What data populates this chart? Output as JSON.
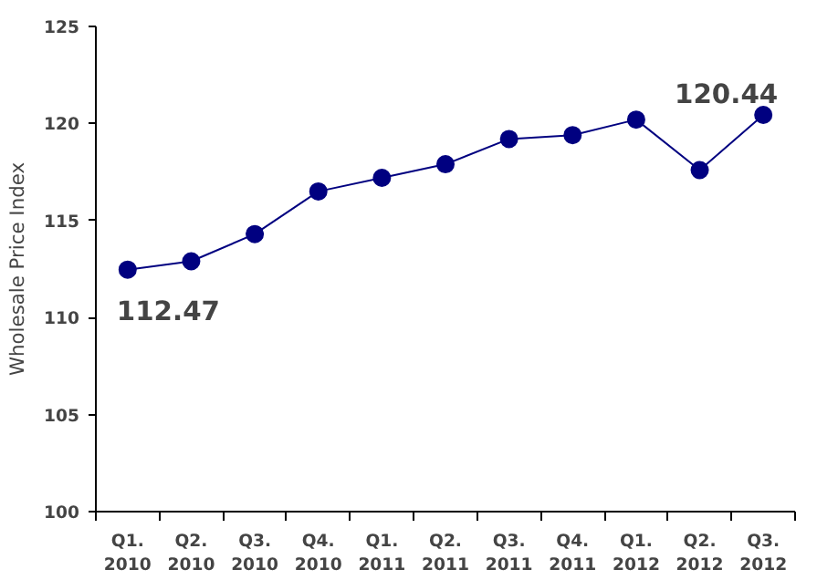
{
  "chart_data": {
    "type": "line",
    "ylabel": "Wholesale Price Index",
    "categories": [
      "Q1.\n2010",
      "Q2.\n2010",
      "Q3.\n2010",
      "Q4.\n2010",
      "Q1.\n2011",
      "Q2.\n2011",
      "Q3.\n2011",
      "Q4.\n2011",
      "Q1.\n2012",
      "Q2.\n2012",
      "Q3.\n2012"
    ],
    "series": [
      {
        "color": "#000080",
        "values": [
          112.47,
          112.9,
          114.3,
          116.5,
          117.2,
          117.9,
          119.2,
          119.4,
          120.2,
          117.6,
          120.44
        ]
      }
    ],
    "ylim": [
      100,
      125
    ],
    "yticks": [
      100,
      105,
      110,
      115,
      120,
      125
    ],
    "grid": false,
    "marker": "circle",
    "line_style": "solid",
    "annotations": [
      {
        "text": "112.47",
        "x": "Q1.\n2010",
        "y": 112.47
      },
      {
        "text": "120.44",
        "x": "Q3.\n2012",
        "y": 120.44
      }
    ]
  }
}
